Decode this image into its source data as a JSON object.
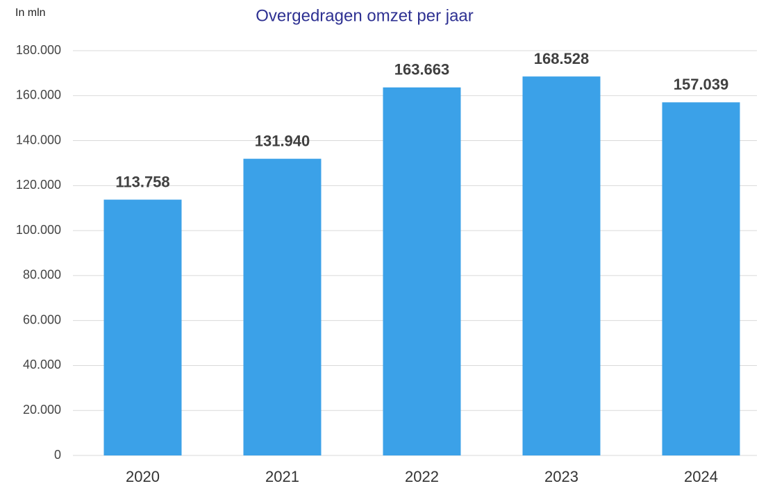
{
  "chart_data": {
    "type": "bar",
    "title": "Overgedragen omzet per jaar",
    "y_label": "In mln",
    "categories": [
      "2020",
      "2021",
      "2022",
      "2023",
      "2024"
    ],
    "values": [
      113758,
      131940,
      163663,
      168528,
      157039
    ],
    "value_labels": [
      "113.758",
      "131.940",
      "163.663",
      "168.528",
      "157.039"
    ],
    "color": "#3ba1e8",
    "ylim": [
      0,
      180000
    ],
    "yticks": [
      0,
      {
        "value": 20000,
        "label": "20.000"
      },
      {
        "value": 40000,
        "label": "40.000"
      },
      {
        "value": 60000,
        "label": "60.000"
      },
      {
        "value": 80000,
        "label": "80.000"
      },
      {
        "value": 100000,
        "label": "100.000"
      },
      {
        "value": 120000,
        "label": "120.000"
      },
      {
        "value": 140000,
        "label": "140.000"
      },
      {
        "value": 160000,
        "label": "160.000"
      },
      {
        "value": 180000,
        "label": "180.000"
      }
    ],
    "grid": true
  }
}
